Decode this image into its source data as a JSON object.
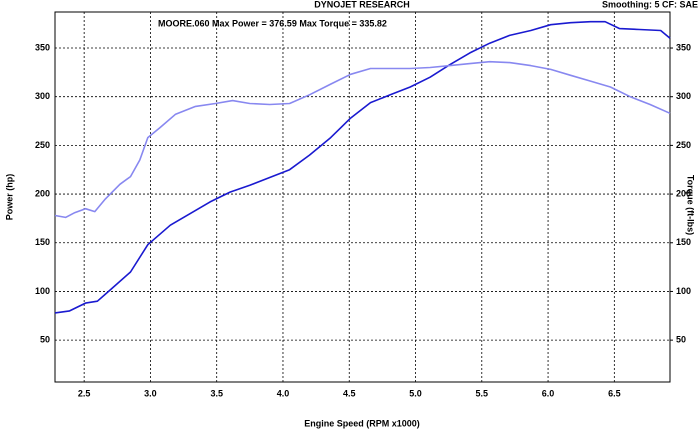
{
  "chart_data": {
    "type": "line",
    "title": "DYNOJET RESEARCH",
    "subtitle": "Smoothing: 5  CF: SAE",
    "annotation": "MOORE.060 Max Power = 376.59 Max Torque = 335.82",
    "xlabel": "Engine Speed (RPM x1000)",
    "ylabel": "Power (hp)",
    "y2label": "Torque (ft-lbs)",
    "xlim": [
      2.28,
      6.92
    ],
    "xticks": [
      {
        "value": 2.5,
        "label": "2.5"
      },
      {
        "value": 3,
        "label": "3.0"
      },
      {
        "value": 3.5,
        "label": "3.5"
      },
      {
        "value": 4,
        "label": "4.0"
      },
      {
        "value": 4.5,
        "label": "4.5"
      },
      {
        "value": 5,
        "label": "5.0"
      },
      {
        "value": 5.5,
        "label": "5.5"
      },
      {
        "value": 6,
        "label": "6.0"
      },
      {
        "value": 6.5,
        "label": "6.5"
      }
    ],
    "ylim": [
      7,
      387
    ],
    "yticks": [
      50,
      100,
      150,
      200,
      250,
      300,
      350
    ],
    "y2lim": [
      7,
      387
    ],
    "y2ticks": [
      50,
      100,
      150,
      200,
      250,
      300,
      350
    ],
    "grid": true,
    "series": [
      {
        "color": "#1a1ad0",
        "axis": "y",
        "x": [
          2.28,
          2.39,
          2.51,
          2.6,
          2.7,
          2.85,
          2.98,
          3.15,
          3.3,
          3.45,
          3.6,
          3.75,
          3.9,
          4.05,
          4.2,
          4.36,
          4.51,
          4.66,
          4.81,
          4.96,
          5.11,
          5.26,
          5.41,
          5.56,
          5.71,
          5.87,
          6.02,
          6.17,
          6.32,
          6.43,
          6.54,
          6.69,
          6.85,
          6.92
        ],
        "values": [
          78,
          80,
          88,
          90,
          102,
          120,
          148,
          168,
          180,
          192,
          202,
          209,
          217,
          225,
          240,
          258,
          278,
          294,
          302,
          310,
          320,
          333,
          345,
          355,
          363,
          368,
          374,
          376,
          377,
          377,
          370,
          369,
          368,
          360
        ]
      },
      {
        "color": "#8888f0",
        "axis": "y2",
        "x": [
          2.28,
          2.36,
          2.43,
          2.51,
          2.58,
          2.66,
          2.77,
          2.85,
          2.92,
          2.98,
          3.07,
          3.19,
          3.34,
          3.49,
          3.62,
          3.75,
          3.9,
          4.05,
          4.2,
          4.36,
          4.51,
          4.66,
          4.81,
          4.96,
          5.11,
          5.26,
          5.41,
          5.56,
          5.71,
          5.87,
          6.02,
          6.17,
          6.32,
          6.47,
          6.62,
          6.77,
          6.92
        ],
        "values": [
          178,
          176,
          181,
          185,
          182,
          195,
          210,
          218,
          235,
          258,
          268,
          282,
          290,
          293,
          296,
          293,
          292,
          293,
          302,
          313,
          323,
          329,
          329,
          329,
          330,
          332,
          334,
          336,
          335,
          332,
          328,
          322,
          316,
          310,
          300,
          292,
          283
        ]
      }
    ]
  }
}
